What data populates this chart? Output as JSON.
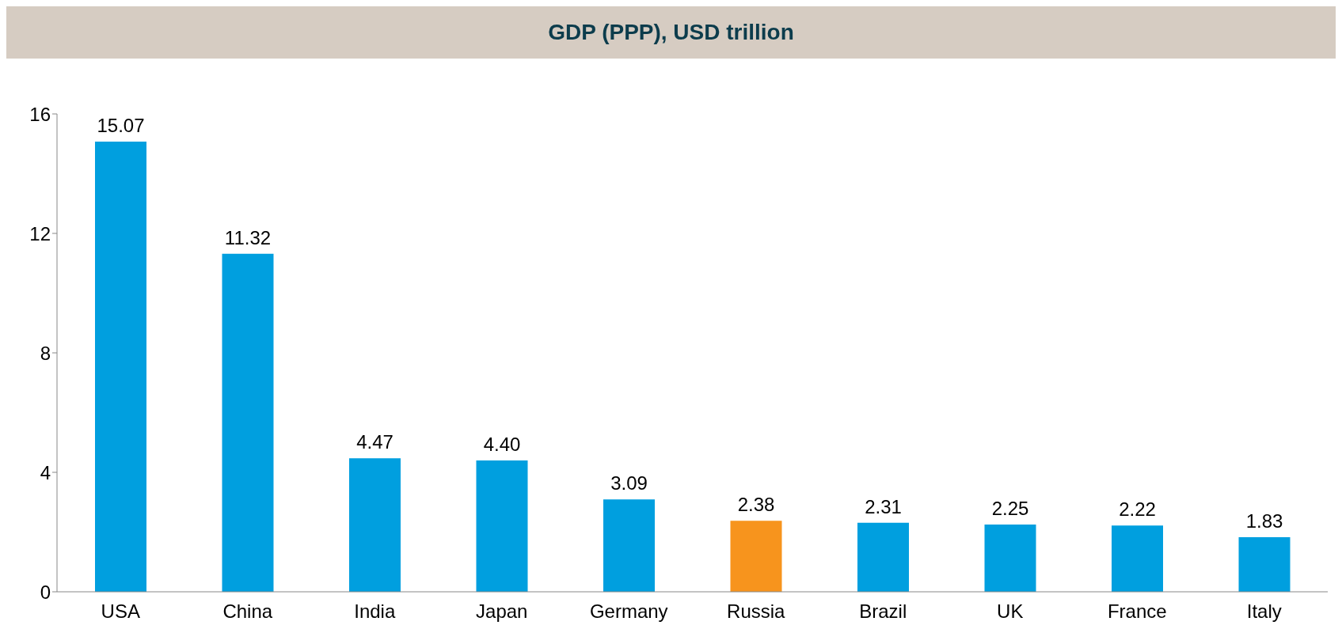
{
  "chart_data": {
    "type": "bar",
    "title": "GDP (PPP), USD trillion",
    "categories": [
      "USA",
      "China",
      "India",
      "Japan",
      "Germany",
      "Russia",
      "Brazil",
      "UK",
      "France",
      "Italy"
    ],
    "values": [
      15.07,
      11.32,
      4.47,
      4.4,
      3.09,
      2.38,
      2.31,
      2.25,
      2.22,
      1.83
    ],
    "colors": [
      "#009fdf",
      "#009fdf",
      "#009fdf",
      "#009fdf",
      "#009fdf",
      "#f7941d",
      "#009fdf",
      "#009fdf",
      "#009fdf",
      "#009fdf"
    ],
    "value_labels": [
      "15.07",
      "11.32",
      "4.47",
      "4.40",
      "3.09",
      "2.38",
      "2.31",
      "2.25",
      "2.22",
      "1.83"
    ],
    "ylim": [
      0,
      16
    ],
    "yticks": [
      0,
      4,
      8,
      12,
      16
    ],
    "grid": false
  }
}
